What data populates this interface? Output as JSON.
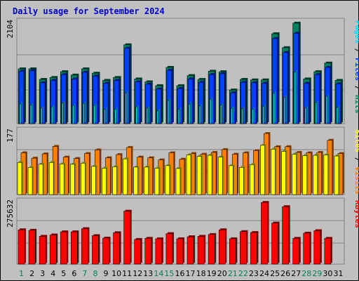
{
  "title": "Daily usage for September 2024",
  "colors": {
    "title": "#0000cc",
    "pages": "#00e0ff",
    "files": "#0040ff",
    "hits": "#00805c",
    "visits": "#ff8000",
    "sites": "#ffff00",
    "kbytes": "#ff0000",
    "weekend_day": "#00805c",
    "weekday": "#000000",
    "separator": "#000000"
  },
  "chart_data": [
    {
      "type": "bar",
      "name": "hits-files-pages",
      "ymax_label": "2104",
      "ylim": [
        0,
        2104
      ],
      "y_right_labels": [
        "Pages",
        "Files",
        "Hits"
      ],
      "categories": [
        "1",
        "2",
        "3",
        "4",
        "5",
        "6",
        "7",
        "8",
        "9",
        "10",
        "11",
        "12",
        "13",
        "14",
        "15",
        "16",
        "17",
        "18",
        "19",
        "20",
        "21",
        "22",
        "23",
        "24",
        "25",
        "26",
        "27",
        "28",
        "29",
        "30",
        "31"
      ],
      "weekend_days": [
        "1",
        "7",
        "8",
        "14",
        "15",
        "21",
        "22",
        "28",
        "29"
      ],
      "series": [
        {
          "name": "Hits",
          "values": [
            1140,
            1140,
            920,
            960,
            1080,
            1010,
            1140,
            1050,
            900,
            960,
            1640,
            930,
            870,
            790,
            1170,
            790,
            1000,
            920,
            1090,
            1080,
            700,
            920,
            910,
            910,
            1870,
            1580,
            2090,
            930,
            1080,
            1260,
            900
          ]
        },
        {
          "name": "Files",
          "values": [
            1090,
            1100,
            850,
            900,
            1020,
            930,
            1070,
            990,
            840,
            900,
            1570,
            870,
            820,
            720,
            1110,
            730,
            930,
            860,
            1020,
            1040,
            640,
            860,
            850,
            840,
            1770,
            1480,
            1880,
            840,
            1020,
            1170,
            830
          ]
        },
        {
          "name": "Pages",
          "values": [
            410,
            390,
            330,
            350,
            430,
            380,
            420,
            380,
            300,
            300,
            640,
            350,
            330,
            270,
            490,
            300,
            410,
            370,
            510,
            390,
            320,
            310,
            300,
            360,
            640,
            550,
            1080,
            330,
            440,
            570,
            340
          ]
        }
      ]
    },
    {
      "type": "bar",
      "name": "visits-sites",
      "ymax_label": "177",
      "ylim": [
        0,
        177
      ],
      "y_right_labels": [
        "Sites",
        "Visits"
      ],
      "categories": [
        "1",
        "2",
        "3",
        "4",
        "5",
        "6",
        "7",
        "8",
        "9",
        "10",
        "11",
        "12",
        "13",
        "14",
        "15",
        "16",
        "17",
        "18",
        "19",
        "20",
        "21",
        "22",
        "23",
        "24",
        "25",
        "26",
        "27",
        "28",
        "29",
        "30",
        "31"
      ],
      "series": [
        {
          "name": "Visits",
          "values": [
            117,
            102,
            114,
            135,
            105,
            101,
            115,
            125,
            103,
            112,
            132,
            105,
            103,
            97,
            117,
            99,
            115,
            113,
            118,
            126,
            113,
            117,
            123,
            171,
            134,
            134,
            118,
            117,
            118,
            152,
            115
          ]
        },
        {
          "name": "Sites",
          "values": [
            90,
            76,
            85,
            90,
            86,
            85,
            88,
            79,
            74,
            78,
            100,
            77,
            77,
            74,
            81,
            73,
            111,
            107,
            110,
            105,
            81,
            76,
            84,
            138,
            127,
            121,
            113,
            109,
            110,
            111,
            108
          ]
        }
      ]
    },
    {
      "type": "bar",
      "name": "kbytes",
      "ymax_label": "275632",
      "ylim": [
        0,
        275632
      ],
      "y_right_labels": [
        "KBytes"
      ],
      "categories": [
        "1",
        "2",
        "3",
        "4",
        "5",
        "6",
        "7",
        "8",
        "9",
        "10",
        "11",
        "12",
        "13",
        "14",
        "15",
        "16",
        "17",
        "18",
        "19",
        "20",
        "21",
        "22",
        "23",
        "24",
        "25",
        "26",
        "27",
        "28",
        "29",
        "30",
        "31"
      ],
      "series": [
        {
          "name": "KBytes",
          "values": [
            153000,
            151000,
            124000,
            130000,
            144000,
            144000,
            158000,
            127000,
            116000,
            140000,
            236000,
            110000,
            115000,
            113000,
            136000,
            113000,
            122000,
            124000,
            132000,
            153000,
            113000,
            145000,
            141000,
            275000,
            183000,
            256000,
            115000,
            138000,
            149000,
            115000,
            0
          ]
        }
      ]
    }
  ]
}
